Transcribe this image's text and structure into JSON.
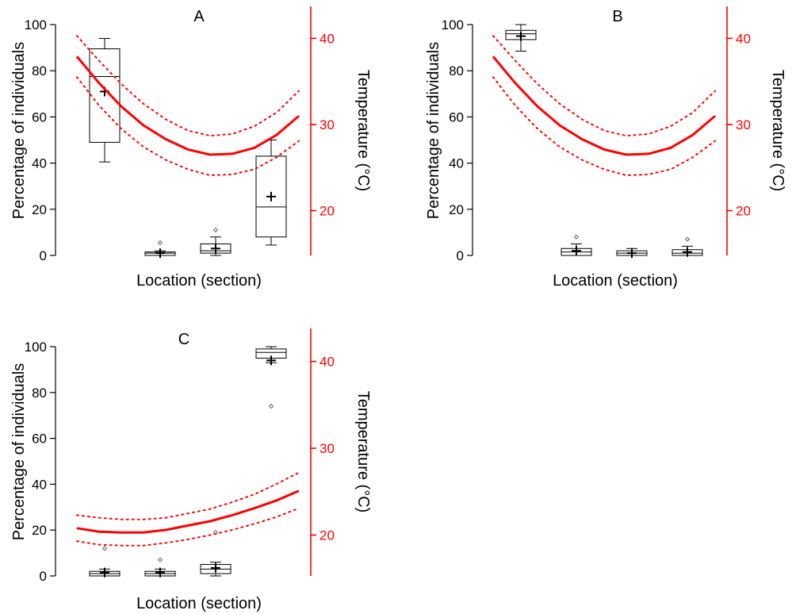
{
  "colors": {
    "temperature": "#ff0000",
    "boxes": "#000000",
    "background": "#ffffff"
  },
  "chart_data": [
    {
      "type": "box",
      "panel_label": "A",
      "xlabel": "Location (section)",
      "ylabel": "Percentage of individuals",
      "y2label": "Temperature (°C)",
      "ylim": [
        0,
        100
      ],
      "y2lim": [
        14.8,
        41.6
      ],
      "yticks": [
        "0",
        "20",
        "40",
        "60",
        "80",
        "100"
      ],
      "y2ticks": [
        "20",
        "30",
        "40"
      ],
      "boxes": [
        {
          "min": 40.5,
          "q1": 49,
          "median": 77.5,
          "q3": 89.5,
          "max": 94,
          "mean": 71,
          "outliers": []
        },
        {
          "min": 0,
          "q1": 0,
          "median": 1,
          "q3": 1.5,
          "max": 2,
          "mean": 1,
          "outliers": [
            5.5
          ]
        },
        {
          "min": 0,
          "q1": 1,
          "median": 2,
          "q3": 5,
          "max": 8,
          "mean": 3,
          "outliers": [
            11
          ]
        },
        {
          "min": 4.5,
          "q1": 8,
          "median": 21,
          "q3": 43,
          "max": 50,
          "mean": 25.5,
          "outliers": []
        }
      ],
      "temperature": {
        "x": [
          0.5,
          0.9,
          1.3,
          1.7,
          2.1,
          2.5,
          2.9,
          3.3,
          3.7,
          4.1,
          4.5
        ],
        "fit": [
          37.9,
          34.8,
          32.1,
          29.9,
          28.3,
          27.1,
          26.5,
          26.6,
          27.3,
          28.8,
          31.0
        ],
        "upper": [
          40.3,
          37.4,
          34.7,
          32.4,
          30.6,
          29.3,
          28.7,
          28.9,
          29.8,
          31.4,
          33.9
        ],
        "lower": [
          35.5,
          32.2,
          29.5,
          27.4,
          25.9,
          24.8,
          24.1,
          24.2,
          24.8,
          26.2,
          28.1
        ]
      }
    },
    {
      "type": "box",
      "panel_label": "B",
      "xlabel": "Location (section)",
      "ylabel": "Percentage of individuals",
      "y2label": "Temperature (°C)",
      "ylim": [
        0,
        100
      ],
      "y2lim": [
        14.8,
        41.6
      ],
      "yticks": [
        "0",
        "20",
        "40",
        "60",
        "80",
        "100"
      ],
      "y2ticks": [
        "20",
        "30",
        "40"
      ],
      "boxes": [
        {
          "min": 88.5,
          "q1": 93.5,
          "median": 96,
          "q3": 97.5,
          "max": 100,
          "mean": 95,
          "outliers": []
        },
        {
          "min": 0,
          "q1": 0,
          "median": 1.5,
          "q3": 3,
          "max": 5,
          "mean": 2,
          "outliers": [
            8
          ]
        },
        {
          "min": 0,
          "q1": 0,
          "median": 1,
          "q3": 2,
          "max": 3,
          "mean": 1,
          "outliers": []
        },
        {
          "min": 0,
          "q1": 0,
          "median": 1,
          "q3": 2.5,
          "max": 4,
          "mean": 1.5,
          "outliers": [
            7
          ]
        }
      ],
      "temperature": {
        "x": [
          0.5,
          0.9,
          1.3,
          1.7,
          2.1,
          2.5,
          2.9,
          3.3,
          3.7,
          4.1,
          4.5
        ],
        "fit": [
          37.9,
          34.8,
          32.1,
          29.9,
          28.3,
          27.1,
          26.5,
          26.6,
          27.3,
          28.8,
          31.0
        ],
        "upper": [
          40.3,
          37.4,
          34.7,
          32.4,
          30.6,
          29.3,
          28.7,
          28.9,
          29.8,
          31.4,
          33.9
        ],
        "lower": [
          35.5,
          32.2,
          29.5,
          27.4,
          25.9,
          24.8,
          24.1,
          24.2,
          24.8,
          26.2,
          28.1
        ]
      }
    },
    {
      "type": "box",
      "panel_label": "C",
      "xlabel": "Location (section)",
      "ylabel": "Percentage of individuals",
      "y2label": "Temperature (°C)",
      "ylim": [
        0,
        100
      ],
      "y2lim": [
        15.3,
        41.7
      ],
      "yticks": [
        "0",
        "20",
        "40",
        "60",
        "80",
        "100"
      ],
      "y2ticks": [
        "20",
        "30",
        "40"
      ],
      "boxes": [
        {
          "min": 0,
          "q1": 0,
          "median": 1,
          "q3": 2,
          "max": 3,
          "mean": 1.5,
          "outliers": [
            12
          ]
        },
        {
          "min": 0,
          "q1": 0,
          "median": 1,
          "q3": 2,
          "max": 3,
          "mean": 1.5,
          "outliers": [
            7
          ]
        },
        {
          "min": 0,
          "q1": 1,
          "median": 3,
          "q3": 5,
          "max": 6,
          "mean": 3.5,
          "outliers": [
            19
          ]
        },
        {
          "min": 93,
          "q1": 95,
          "median": 97.5,
          "q3": 99,
          "max": 100,
          "mean": 94,
          "outliers": [
            74
          ]
        }
      ],
      "temperature": {
        "x": [
          0.5,
          0.9,
          1.3,
          1.7,
          2.1,
          2.5,
          2.9,
          3.3,
          3.7,
          4.1,
          4.5
        ],
        "fit": [
          20.8,
          20.4,
          20.3,
          20.3,
          20.6,
          21.1,
          21.6,
          22.3,
          23.1,
          24.0,
          25.1
        ],
        "upper": [
          22.3,
          22.0,
          21.8,
          21.8,
          22.0,
          22.5,
          23.0,
          23.8,
          24.7,
          25.9,
          27.2
        ],
        "lower": [
          19.3,
          18.9,
          18.8,
          18.8,
          19.1,
          19.5,
          20.0,
          20.6,
          21.3,
          22.1,
          23.1
        ]
      }
    }
  ]
}
